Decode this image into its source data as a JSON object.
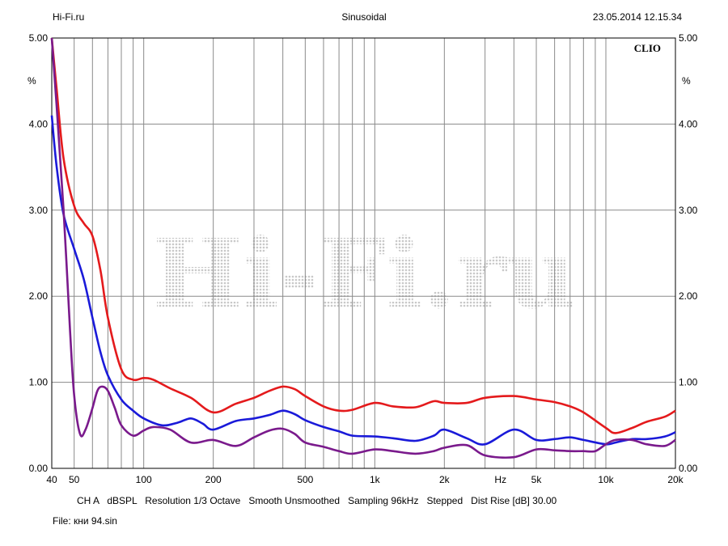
{
  "header": {
    "left": "Hi-Fi.ru",
    "center": "Sinusoidal",
    "right": "23.05.2014 12.15.34"
  },
  "footer": {
    "params": "CH A   dBSPL   Resolution 1/3 Octave   Smooth Unsmoothed   Sampling 96kHz   Stepped   Dist Rise [dB] 30.00",
    "file": "File: кни 94.sin"
  },
  "chart_data": {
    "type": "line",
    "brand_label": "CLIO",
    "watermark": "Hi-Fi.ru",
    "x_scale": "log",
    "xlim": [
      40,
      20000
    ],
    "ylim": [
      0,
      5
    ],
    "y_unit": "%",
    "y_ticks": [
      "0.00",
      "1.00",
      "2.00",
      "3.00",
      "4.00",
      "5.00"
    ],
    "y_tick_values": [
      0,
      1,
      2,
      3,
      4,
      5
    ],
    "x_ticks": [
      {
        "value": 40,
        "label": "40"
      },
      {
        "value": 50,
        "label": "50"
      },
      {
        "value": 100,
        "label": "100"
      },
      {
        "value": 200,
        "label": "200"
      },
      {
        "value": 500,
        "label": "500"
      },
      {
        "value": 1000,
        "label": "1k"
      },
      {
        "value": 2000,
        "label": "2k"
      },
      {
        "value": 3500,
        "label": "Hz"
      },
      {
        "value": 5000,
        "label": "5k"
      },
      {
        "value": 10000,
        "label": "10k"
      },
      {
        "value": 20000,
        "label": "20k"
      }
    ],
    "x_gridlines": [
      40,
      50,
      60,
      70,
      80,
      90,
      100,
      200,
      300,
      400,
      500,
      600,
      700,
      800,
      900,
      1000,
      2000,
      3000,
      4000,
      5000,
      6000,
      7000,
      8000,
      9000,
      10000,
      20000
    ],
    "grid": true,
    "series": [
      {
        "color": "#e41a1c",
        "x": [
          40,
          42,
          45,
          50,
          55,
          60,
          65,
          70,
          80,
          90,
          100,
          110,
          130,
          160,
          200,
          250,
          300,
          350,
          400,
          450,
          500,
          600,
          700,
          800,
          1000,
          1200,
          1500,
          1800,
          2000,
          2500,
          3000,
          4000,
          5000,
          6000,
          7000,
          8000,
          10000,
          11000,
          13000,
          15000,
          18000,
          20000
        ],
        "y": [
          5.0,
          4.4,
          3.6,
          3.05,
          2.85,
          2.7,
          2.3,
          1.75,
          1.15,
          1.03,
          1.05,
          1.03,
          0.93,
          0.82,
          0.65,
          0.75,
          0.82,
          0.9,
          0.95,
          0.92,
          0.84,
          0.72,
          0.67,
          0.68,
          0.76,
          0.72,
          0.71,
          0.78,
          0.76,
          0.76,
          0.82,
          0.84,
          0.8,
          0.77,
          0.72,
          0.65,
          0.47,
          0.41,
          0.47,
          0.54,
          0.6,
          0.67
        ]
      },
      {
        "color": "#1a1ad9",
        "x": [
          40,
          42,
          45,
          50,
          55,
          60,
          65,
          70,
          80,
          90,
          100,
          120,
          140,
          160,
          180,
          200,
          250,
          300,
          350,
          400,
          450,
          500,
          600,
          700,
          800,
          1000,
          1200,
          1500,
          1800,
          2000,
          2500,
          3000,
          4000,
          5000,
          6000,
          7000,
          8000,
          10000,
          11000,
          13000,
          15000,
          18000,
          20000
        ],
        "y": [
          4.1,
          3.5,
          2.95,
          2.55,
          2.2,
          1.75,
          1.35,
          1.08,
          0.8,
          0.67,
          0.58,
          0.5,
          0.53,
          0.58,
          0.52,
          0.45,
          0.55,
          0.58,
          0.62,
          0.67,
          0.63,
          0.56,
          0.48,
          0.43,
          0.38,
          0.37,
          0.35,
          0.32,
          0.38,
          0.45,
          0.35,
          0.28,
          0.45,
          0.33,
          0.34,
          0.36,
          0.33,
          0.28,
          0.3,
          0.34,
          0.34,
          0.37,
          0.42
        ]
      },
      {
        "color": "#7a1a8c",
        "x": [
          40,
          42,
          45,
          48,
          50,
          53,
          56,
          60,
          63,
          66,
          70,
          75,
          80,
          90,
          100,
          110,
          130,
          160,
          200,
          250,
          300,
          350,
          400,
          450,
          500,
          600,
          700,
          800,
          1000,
          1200,
          1500,
          1800,
          2000,
          2500,
          3000,
          4000,
          5000,
          6000,
          7000,
          8000,
          9000,
          10000,
          11000,
          13000,
          15000,
          18000,
          20000
        ],
        "y": [
          5.0,
          4.2,
          3.0,
          1.6,
          0.85,
          0.4,
          0.45,
          0.7,
          0.9,
          0.95,
          0.9,
          0.7,
          0.5,
          0.38,
          0.44,
          0.48,
          0.45,
          0.3,
          0.33,
          0.26,
          0.36,
          0.44,
          0.46,
          0.4,
          0.3,
          0.25,
          0.2,
          0.17,
          0.22,
          0.2,
          0.17,
          0.2,
          0.24,
          0.27,
          0.15,
          0.13,
          0.22,
          0.21,
          0.2,
          0.2,
          0.2,
          0.28,
          0.33,
          0.33,
          0.28,
          0.26,
          0.33
        ]
      }
    ]
  }
}
